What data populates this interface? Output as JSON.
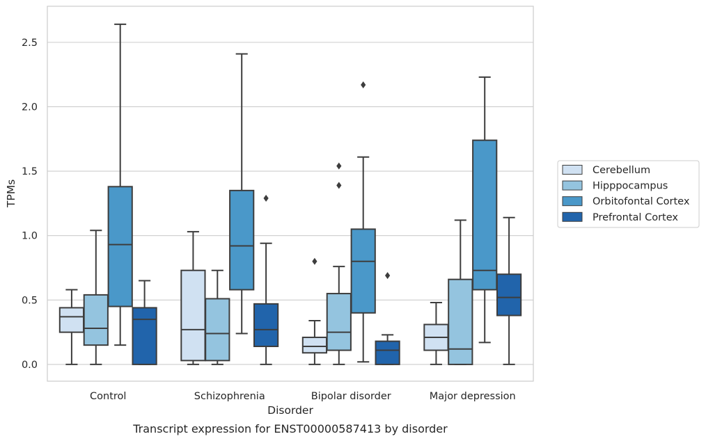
{
  "chart_data": {
    "type": "box",
    "caption": "Transcript expression for ENST00000587413 by disorder",
    "xlabel": "Disorder",
    "ylabel": "TPMs",
    "ylim": [
      -0.13,
      2.78
    ],
    "yticks": [
      0.0,
      0.5,
      1.0,
      1.5,
      2.0,
      2.5
    ],
    "ytick_labels": [
      "0.0",
      "0.5",
      "1.0",
      "1.5",
      "2.0",
      "2.5"
    ],
    "grid": "horizontal",
    "legend_position": "right",
    "categories": [
      "Control",
      "Schizophrenia",
      "Bipolar disorder",
      "Major depression"
    ],
    "series": [
      {
        "name": "Cerebellum",
        "color": "#d0e1f2",
        "boxes": [
          {
            "whisker_low": 0.0,
            "q1": 0.25,
            "median": 0.37,
            "q3": 0.44,
            "whisker_high": 0.58,
            "outliers": []
          },
          {
            "whisker_low": 0.0,
            "q1": 0.03,
            "median": 0.27,
            "q3": 0.73,
            "whisker_high": 1.03,
            "outliers": []
          },
          {
            "whisker_low": 0.0,
            "q1": 0.09,
            "median": 0.14,
            "q3": 0.21,
            "whisker_high": 0.34,
            "outliers": [
              0.8
            ]
          },
          {
            "whisker_low": 0.0,
            "q1": 0.11,
            "median": 0.21,
            "q3": 0.31,
            "whisker_high": 0.48,
            "outliers": []
          }
        ]
      },
      {
        "name": "Hipppocampus",
        "color": "#94c4df",
        "boxes": [
          {
            "whisker_low": 0.0,
            "q1": 0.15,
            "median": 0.28,
            "q3": 0.54,
            "whisker_high": 1.04,
            "outliers": []
          },
          {
            "whisker_low": 0.0,
            "q1": 0.03,
            "median": 0.24,
            "q3": 0.51,
            "whisker_high": 0.73,
            "outliers": []
          },
          {
            "whisker_low": 0.0,
            "q1": 0.11,
            "median": 0.25,
            "q3": 0.55,
            "whisker_high": 0.76,
            "outliers": [
              1.39,
              1.54
            ]
          },
          {
            "whisker_low": 0.0,
            "q1": 0.0,
            "median": 0.12,
            "q3": 0.66,
            "whisker_high": 1.12,
            "outliers": []
          }
        ]
      },
      {
        "name": "Orbitofontal Cortex",
        "color": "#4a98c9",
        "boxes": [
          {
            "whisker_low": 0.15,
            "q1": 0.45,
            "median": 0.93,
            "q3": 1.38,
            "whisker_high": 2.64,
            "outliers": []
          },
          {
            "whisker_low": 0.24,
            "q1": 0.58,
            "median": 0.92,
            "q3": 1.35,
            "whisker_high": 2.41,
            "outliers": []
          },
          {
            "whisker_low": 0.02,
            "q1": 0.4,
            "median": 0.8,
            "q3": 1.05,
            "whisker_high": 1.61,
            "outliers": [
              2.17
            ]
          },
          {
            "whisker_low": 0.17,
            "q1": 0.58,
            "median": 0.73,
            "q3": 1.74,
            "whisker_high": 2.23,
            "outliers": []
          }
        ]
      },
      {
        "name": "Prefrontal Cortex",
        "color": "#2164ab",
        "boxes": [
          {
            "whisker_low": 0.0,
            "q1": 0.0,
            "median": 0.35,
            "q3": 0.44,
            "whisker_high": 0.65,
            "outliers": []
          },
          {
            "whisker_low": 0.0,
            "q1": 0.14,
            "median": 0.27,
            "q3": 0.47,
            "whisker_high": 0.94,
            "outliers": [
              1.29
            ]
          },
          {
            "whisker_low": 0.0,
            "q1": 0.0,
            "median": 0.11,
            "q3": 0.18,
            "whisker_high": 0.23,
            "outliers": [
              0.69
            ]
          },
          {
            "whisker_low": 0.0,
            "q1": 0.38,
            "median": 0.52,
            "q3": 0.7,
            "whisker_high": 1.14,
            "outliers": []
          }
        ]
      }
    ]
  },
  "colors": {
    "grid": "#cccccc",
    "axes_frame": "#cccccc",
    "box_edge": "#3d3d3d",
    "legend_frame": "#cccccc"
  }
}
